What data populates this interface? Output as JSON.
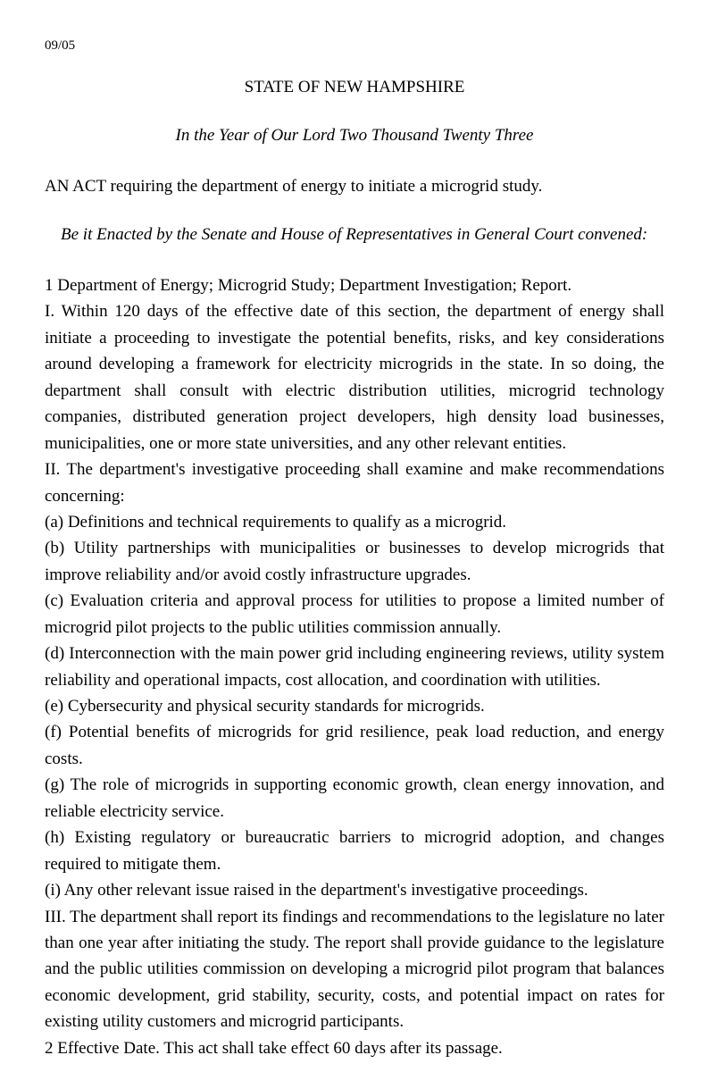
{
  "doc_number": "09/05",
  "state_header": "STATE OF NEW HAMPSHIRE",
  "year_line": "In the Year of Our Lord Two Thousand Twenty Three",
  "act_title": "AN ACT requiring the department of energy to initiate a microgrid study.",
  "enacted_by": "Be it Enacted by the Senate and House of Representatives in General Court convened:",
  "section1_heading": "1  Department of Energy; Microgrid Study; Department Investigation; Report.",
  "para_I": "I. Within 120 days of the effective date of this section, the department of energy shall initiate a proceeding to investigate the potential benefits, risks, and key considerations around developing a framework for electricity microgrids in the state. In so doing, the department shall consult with electric distribution utilities, microgrid technology companies, distributed generation project developers, high density load businesses, municipalities, one or more state universities, and any other relevant entities.",
  "para_II_intro": "II. The department's investigative proceeding shall examine and make recommendations concerning:",
  "item_a": "(a)  Definitions and technical requirements to qualify as a microgrid.",
  "item_b": "(b)  Utility partnerships with municipalities or businesses to develop microgrids that improve reliability and/or avoid costly infrastructure upgrades.",
  "item_c": "(c)  Evaluation criteria and approval process for utilities to propose a limited number of microgrid pilot projects to the public utilities commission annually.",
  "item_d": "(d)  Interconnection with the main power grid including engineering reviews, utility system reliability and operational impacts, cost allocation, and coordination with utilities.",
  "item_e": "(e)  Cybersecurity and physical security standards for microgrids.",
  "item_f": "(f)  Potential benefits of microgrids for grid resilience, peak load reduction, and energy costs.",
  "item_g": "(g)  The role of microgrids in supporting economic growth, clean energy innovation, and reliable electricity service.",
  "item_h": "(h)  Existing regulatory or bureaucratic barriers to microgrid adoption, and changes required to mitigate them.",
  "item_i": "(i)  Any other relevant issue raised in the department's investigative proceedings.",
  "para_III": "III.  The department shall report its findings and recommendations to the legislature no later than one year after initiating the study.  The report shall provide guidance to the legislature and the public utilities commission on developing a microgrid pilot program that balances economic development, grid stability, security, costs, and potential impact on rates for existing utility customers and microgrid participants.",
  "section2": "2  Effective Date.  This act shall take effect 60 days after its passage."
}
